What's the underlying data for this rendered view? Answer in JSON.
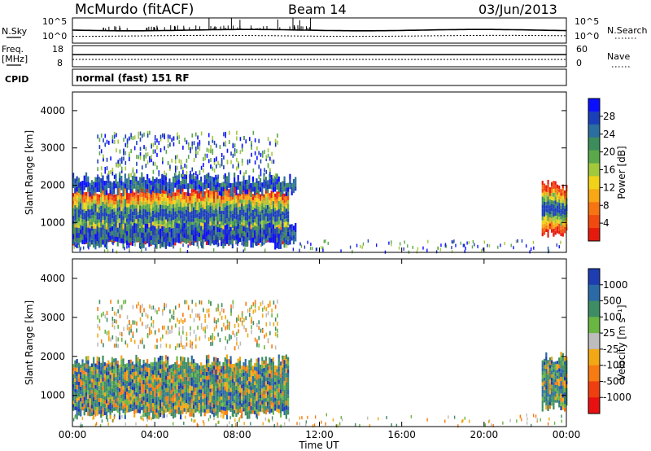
{
  "header": {
    "station": "McMurdo (fitACF)",
    "beam": "Beam 14",
    "date": "03/Jun/2013"
  },
  "status_panels": {
    "nsky_label": "N.Sky",
    "nsky_ticks": [
      "10^5",
      "10^0"
    ],
    "nsearch_label": "N.Search",
    "nsearch_ticks": [
      "10^5",
      "10^0"
    ],
    "freq_label": "Freq.",
    "freq_unit": "[MHz]",
    "freq_ticks": [
      "18",
      "8"
    ],
    "nave_label": "Nave",
    "nave_ticks": [
      "60",
      "0"
    ],
    "cpid_label": "CPID",
    "cpid_value": "normal (fast) 151 RF"
  },
  "chart_data": [
    {
      "type": "heatmap",
      "name": "power",
      "ylabel": "Slant Range [km]",
      "yticks": [
        1000,
        2000,
        3000,
        4000
      ],
      "ylim": [
        200,
        4500
      ],
      "xlim_hours": [
        0,
        24
      ],
      "colorbar": {
        "label": "Power [dB]",
        "ticks": [
          "28",
          "24",
          "20",
          "16",
          "12",
          "8",
          "4"
        ],
        "colors": [
          "#0a10ff",
          "#1b3fb8",
          "#2b6ea0",
          "#3d8c5c",
          "#5aa84a",
          "#a2c83c",
          "#f2d218",
          "#f7a814",
          "#f67412",
          "#f04a10",
          "#e61a0c"
        ]
      },
      "regions": [
        {
          "t0": 0.0,
          "t1": 10.5,
          "r0": 500,
          "r1": 1900,
          "level": "high"
        },
        {
          "t0": 0.0,
          "t1": 10.8,
          "r0": 400,
          "r1": 2200,
          "level": "low"
        },
        {
          "t0": 1.2,
          "t1": 10.0,
          "r0": 2200,
          "r1": 3400,
          "level": "scatter"
        },
        {
          "t0": 22.8,
          "t1": 24.0,
          "r0": 700,
          "r1": 2000,
          "level": "high"
        }
      ]
    },
    {
      "type": "heatmap",
      "name": "velocity",
      "ylabel": "Slant Range [km]",
      "yticks": [
        1000,
        2000,
        3000,
        4000
      ],
      "ylim": [
        200,
        4500
      ],
      "xlim_hours": [
        0,
        24
      ],
      "colorbar": {
        "label": "Velocity [m s⁻¹]",
        "ticks": [
          "1000",
          "500",
          "100",
          "25",
          "-25",
          "-100",
          "-500",
          "-1000"
        ],
        "colors": [
          "#1d3db0",
          "#2a6aa6",
          "#3e8c63",
          "#6ab642",
          "#bdbdbd",
          "#f2a814",
          "#f77a12",
          "#ef3e10",
          "#e81010"
        ]
      },
      "regions": [
        {
          "t0": 0.0,
          "t1": 10.5,
          "r0": 500,
          "r1": 1900,
          "level": "mixed"
        },
        {
          "t0": 1.2,
          "t1": 10.0,
          "r0": 2200,
          "r1": 3400,
          "level": "scatter"
        },
        {
          "t0": 22.8,
          "t1": 24.0,
          "r0": 700,
          "r1": 2000,
          "level": "mixed"
        }
      ]
    }
  ],
  "time_axis": {
    "ticks": [
      "00:00",
      "04:00",
      "08:00",
      "12:00",
      "16:00",
      "20:00",
      "00:00"
    ],
    "label": "Time UT"
  }
}
